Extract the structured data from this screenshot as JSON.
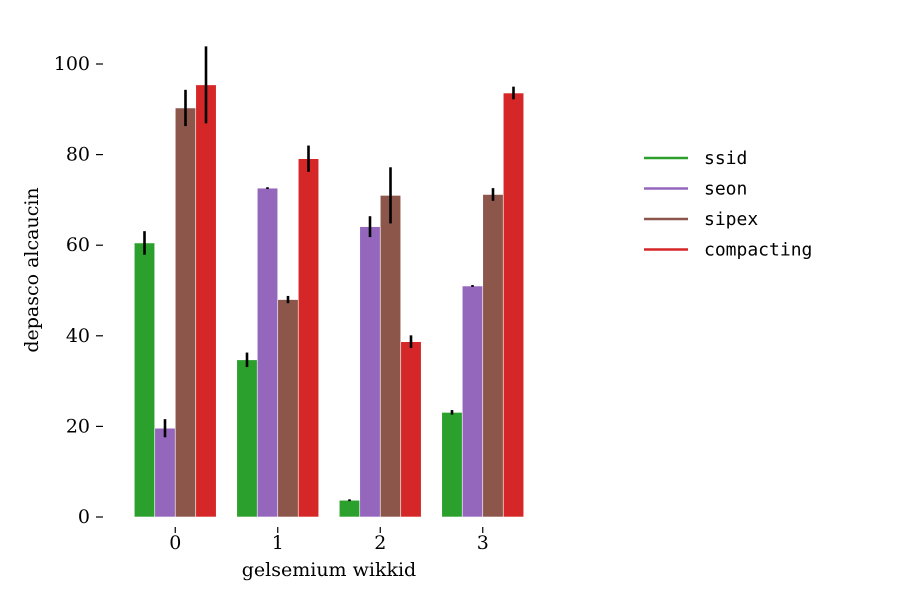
{
  "chart_data": {
    "type": "bar",
    "categories": [
      "0",
      "1",
      "2",
      "3"
    ],
    "xlabel": "gelsemium wikkid",
    "ylabel": "depasco alcaucin",
    "ylim": [
      0,
      105
    ],
    "yticks": [
      0,
      20,
      40,
      60,
      80,
      100
    ],
    "grid": false,
    "legend_position": "right",
    "series": [
      {
        "name": "ssid",
        "color": "#2ca02c",
        "values": [
          60.5,
          34.7,
          3.7,
          23.1
        ],
        "errors": [
          2.6,
          1.6,
          0.2,
          0.5
        ]
      },
      {
        "name": "seon",
        "color": "#9467bd",
        "values": [
          19.6,
          72.6,
          64.1,
          51.0
        ],
        "errors": [
          2.0,
          0.2,
          2.3,
          0.2
        ]
      },
      {
        "name": "sipex",
        "color": "#8c564b",
        "values": [
          90.3,
          48.0,
          71.0,
          71.2
        ],
        "errors": [
          4.0,
          0.8,
          6.2,
          1.4
        ]
      },
      {
        "name": "compacting",
        "color": "#d62728",
        "values": [
          95.4,
          79.1,
          38.7,
          93.6
        ],
        "errors": [
          8.5,
          2.9,
          1.4,
          1.4
        ]
      }
    ]
  }
}
